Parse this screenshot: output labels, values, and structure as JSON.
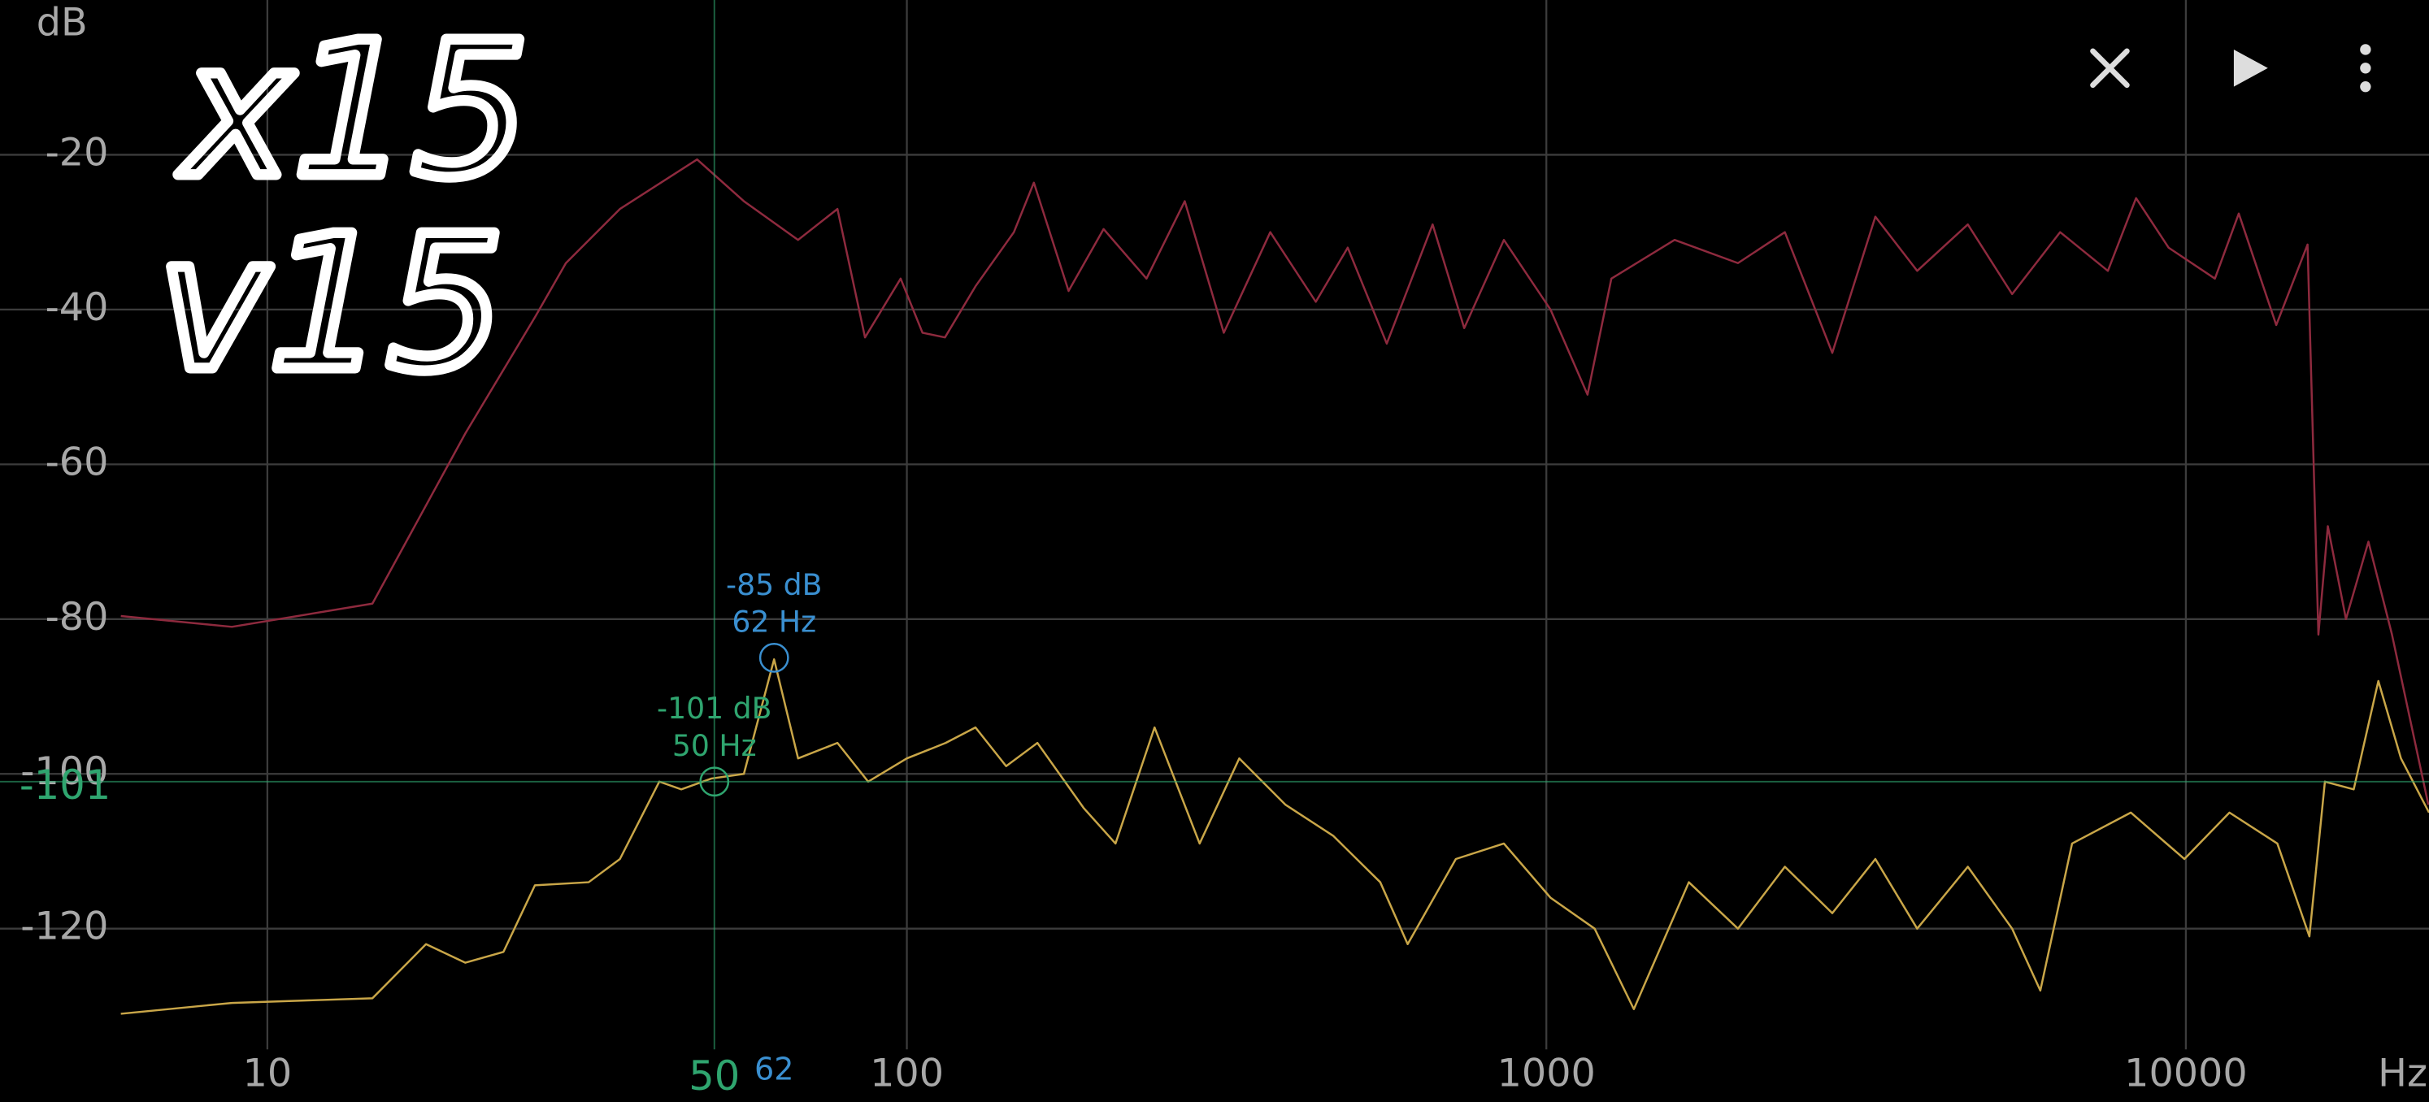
{
  "chart_data": {
    "type": "line",
    "x_unit": "Hz",
    "y_unit": "dB",
    "xscale": "log",
    "xlim": [
      5.9,
      24000
    ],
    "xticks": [
      10,
      100,
      1000,
      10000
    ],
    "ylim": [
      -135.6,
      0
    ],
    "yticks": [
      -20,
      -40,
      -60,
      -80,
      -100,
      -120
    ],
    "grid": true,
    "annotations": [
      "x15",
      "v15"
    ],
    "series": [
      {
        "color": "#8e2a3e",
        "x": [
          5.9,
          8.8,
          14.6,
          20.4,
          26.2,
          29.3,
          35.6,
          47,
          55.6,
          67.6,
          77.9,
          86,
          97.8,
          105.8,
          114.7,
          128,
          147,
          158,
          179,
          203,
          237,
          272,
          313,
          370,
          436,
          489,
          563,
          664,
          744,
          858,
          1015,
          1160,
          1264,
          1587,
          1993,
          2360,
          2800,
          3270,
          3800,
          4560,
          5350,
          6360,
          7550,
          8360,
          9400,
          11100,
          12100,
          13850,
          15500,
          16120,
          16670,
          17800,
          19300,
          21000,
          23950
        ],
        "values": [
          -79.6,
          -81,
          -78,
          -56,
          -41,
          -34,
          -27,
          -20.6,
          -26,
          -31,
          -27,
          -43.6,
          -36,
          -43,
          -43.6,
          -37,
          -30,
          -23.6,
          -37.6,
          -29.6,
          -36,
          -26,
          -43,
          -30,
          -39,
          -32,
          -44.4,
          -29,
          -42.4,
          -31,
          -40,
          -51,
          -36,
          -31,
          -34,
          -30,
          -45.6,
          -28,
          -35,
          -29,
          -38,
          -30,
          -35,
          -25.6,
          -32,
          -36,
          -27.6,
          -42,
          -31.6,
          -82,
          -68,
          -80,
          -70,
          -82,
          -104
        ]
      },
      {
        "color": "#c9a648",
        "x": [
          5.9,
          8.8,
          14.6,
          17.7,
          20.4,
          23.4,
          26.2,
          31.8,
          35.6,
          41,
          44.4,
          49.5,
          55.6,
          62,
          67.6,
          77.9,
          87,
          100,
          115,
          128,
          143,
          160,
          189,
          212,
          244,
          287,
          331,
          391,
          464,
          550,
          607,
          722,
          858,
          1015,
          1190,
          1370,
          1670,
          1993,
          2360,
          2800,
          3270,
          3800,
          4560,
          5350,
          5920,
          6640,
          8200,
          9950,
          11700,
          13900,
          15600,
          16500,
          18300,
          20000,
          21700,
          24000
        ],
        "values": [
          -131,
          -129.6,
          -129,
          -122,
          -124.4,
          -123,
          -114.4,
          -114,
          -111,
          -101,
          -102,
          -100.6,
          -100,
          -85.2,
          -98,
          -96,
          -101,
          -98,
          -96,
          -94,
          -99,
          -96,
          -104.4,
          -109,
          -94,
          -109,
          -98,
          -104,
          -108,
          -114,
          -122,
          -111,
          -109,
          -116,
          -120,
          -130.4,
          -114,
          -120,
          -112,
          -118,
          -111,
          -120,
          -112,
          -120,
          -128,
          -109,
          -105,
          -111,
          -105,
          -109,
          -121,
          -101,
          -102,
          -88,
          -98,
          -105
        ]
      }
    ],
    "markers": [
      {
        "x": 50,
        "y": -101,
        "color": "#2fa56f",
        "label_lines": [
          "-101 dB",
          "50 Hz"
        ]
      },
      {
        "x": 62,
        "y": -85,
        "color": "#3a8fd0",
        "label_lines": [
          "-85 dB",
          "62 Hz"
        ]
      }
    ]
  }
}
